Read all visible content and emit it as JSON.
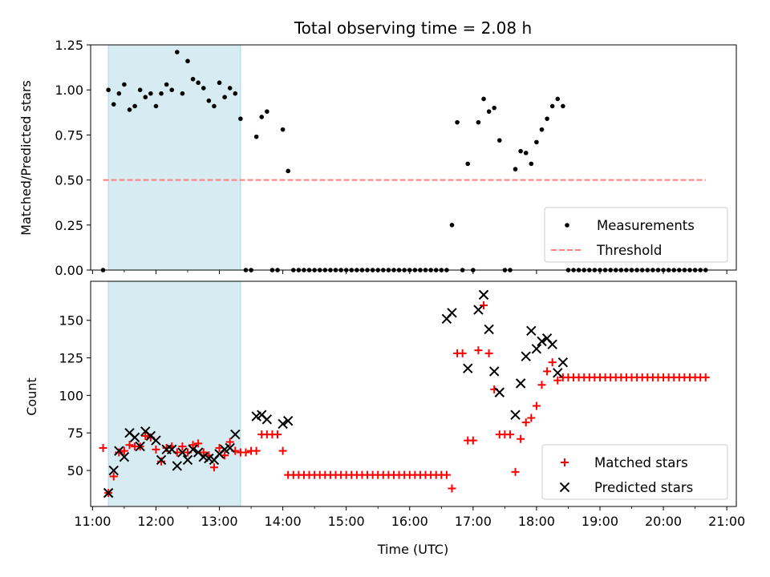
{
  "title": "Total observing time = 2.08 h",
  "colors": {
    "measurement": "#000000",
    "threshold": "#ff7f7f",
    "shade": "#add8e6",
    "matched": "#ff0000",
    "predicted": "#000000"
  },
  "chart_data": [
    {
      "type": "scatter",
      "panel": "top",
      "ylabel": "Matched/Predicted stars",
      "xlim": [
        10.97,
        21.15
      ],
      "ylim": [
        0,
        1.25
      ],
      "yticks": [
        0.0,
        0.25,
        0.5,
        0.75,
        1.0,
        1.25
      ],
      "ytick_labels": [
        "0.00",
        "0.25",
        "0.50",
        "0.75",
        "1.00",
        "1.25"
      ],
      "shaded_span": [
        "11:15",
        "13:20"
      ],
      "legend": {
        "location": "lower right",
        "entries": [
          "Measurements",
          "Threshold"
        ]
      },
      "series": [
        {
          "name": "Measurements",
          "marker": "dot",
          "x": [
            "11:10",
            "11:15",
            "11:20",
            "11:25",
            "11:30",
            "11:35",
            "11:40",
            "11:45",
            "11:50",
            "11:55",
            "12:00",
            "12:05",
            "12:10",
            "12:15",
            "12:20",
            "12:25",
            "12:30",
            "12:35",
            "12:40",
            "12:45",
            "12:50",
            "12:55",
            "13:00",
            "13:05",
            "13:10",
            "13:15",
            "13:20",
            "13:25",
            "13:30",
            "13:35",
            "13:40",
            "13:45",
            "13:50",
            "13:55",
            "14:00",
            "14:05",
            "14:10",
            "14:15",
            "14:20",
            "14:25",
            "14:30",
            "14:35",
            "14:40",
            "14:45",
            "14:50",
            "14:55",
            "15:00",
            "15:05",
            "15:10",
            "15:15",
            "15:20",
            "15:25",
            "15:30",
            "15:35",
            "15:40",
            "15:45",
            "15:50",
            "15:55",
            "16:00",
            "16:05",
            "16:10",
            "16:15",
            "16:20",
            "16:25",
            "16:30",
            "16:35",
            "16:40",
            "16:45",
            "16:50",
            "16:55",
            "17:00",
            "17:05",
            "17:10",
            "17:15",
            "17:20",
            "17:25",
            "17:30",
            "17:35",
            "17:40",
            "17:45",
            "17:50",
            "17:55",
            "18:00",
            "18:05",
            "18:10",
            "18:15",
            "18:20",
            "18:25",
            "18:30",
            "18:35",
            "18:40",
            "18:45",
            "18:50",
            "18:55",
            "19:00",
            "19:05",
            "19:10",
            "19:15",
            "19:20",
            "19:25",
            "19:30",
            "19:35",
            "19:40",
            "19:45",
            "19:50",
            "19:55",
            "20:00",
            "20:05",
            "20:10",
            "20:15",
            "20:20",
            "20:25",
            "20:30",
            "20:35",
            "20:40"
          ],
          "y": [
            0.0,
            1.0,
            0.92,
            0.98,
            1.03,
            0.89,
            0.91,
            1.0,
            0.96,
            0.98,
            0.91,
            0.98,
            1.03,
            1.0,
            1.21,
            0.98,
            1.16,
            1.06,
            1.04,
            1.01,
            0.94,
            0.91,
            1.04,
            0.96,
            1.01,
            0.98,
            0.84,
            0.0,
            0.0,
            0.74,
            0.85,
            0.88,
            0.0,
            0.0,
            0.78,
            0.55,
            0.0,
            0.0,
            0.0,
            0.0,
            0.0,
            0.0,
            0.0,
            0.0,
            0.0,
            0.0,
            0.0,
            0.0,
            0.0,
            0.0,
            0.0,
            0.0,
            0.0,
            0.0,
            0.0,
            0.0,
            0.0,
            0.0,
            0.0,
            0.0,
            0.0,
            0.0,
            0.0,
            0.0,
            0.0,
            0.0,
            0.25,
            0.82,
            0.0,
            0.59,
            0.0,
            0.82,
            0.95,
            0.88,
            0.9,
            0.72,
            0.0,
            0.0,
            0.56,
            0.66,
            0.65,
            0.59,
            0.71,
            0.78,
            0.84,
            0.91,
            0.95,
            0.91,
            0.0,
            0.0,
            0.0,
            0.0,
            0.0,
            0.0,
            0.0,
            0.0,
            0.0,
            0.0,
            0.0,
            0.0,
            0.0,
            0.0,
            0.0,
            0.0,
            0.0,
            0.0,
            0.0,
            0.0,
            0.0,
            0.0,
            0.0,
            0.0,
            0.0,
            0.0,
            0.0
          ]
        },
        {
          "name": "Threshold",
          "marker": "dashed-line",
          "x": [
            "11:10",
            "20:40"
          ],
          "y": [
            0.5,
            0.5
          ]
        }
      ]
    },
    {
      "type": "scatter",
      "panel": "bottom",
      "xlabel": "Time (UTC)",
      "ylabel": "Count",
      "xlim": [
        10.97,
        21.15
      ],
      "ylim": [
        26,
        176
      ],
      "xticks": [
        "11:00",
        "12:00",
        "13:00",
        "14:00",
        "15:00",
        "16:00",
        "17:00",
        "18:00",
        "19:00",
        "20:00",
        "21:00"
      ],
      "yticks": [
        50,
        75,
        100,
        125,
        150
      ],
      "ytick_labels": [
        "50",
        "75",
        "100",
        "125",
        "150"
      ],
      "shaded_span": [
        "11:15",
        "13:20"
      ],
      "legend": {
        "location": "lower right",
        "entries": [
          "Matched stars",
          "Predicted stars"
        ]
      },
      "series": [
        {
          "name": "Matched stars",
          "marker": "plus",
          "x": [
            "11:10",
            "11:15",
            "11:20",
            "11:25",
            "11:30",
            "11:35",
            "11:40",
            "11:45",
            "11:50",
            "11:55",
            "12:00",
            "12:05",
            "12:10",
            "12:15",
            "12:20",
            "12:25",
            "12:30",
            "12:35",
            "12:40",
            "12:45",
            "12:50",
            "12:55",
            "13:00",
            "13:05",
            "13:10",
            "13:15",
            "13:20",
            "13:25",
            "13:30",
            "13:35",
            "13:40",
            "13:45",
            "13:50",
            "13:55",
            "14:00",
            "14:05",
            "14:10",
            "14:15",
            "14:20",
            "14:25",
            "14:30",
            "14:35",
            "14:40",
            "14:45",
            "14:50",
            "14:55",
            "15:00",
            "15:05",
            "15:10",
            "15:15",
            "15:20",
            "15:25",
            "15:30",
            "15:35",
            "15:40",
            "15:45",
            "15:50",
            "15:55",
            "16:00",
            "16:05",
            "16:10",
            "16:15",
            "16:20",
            "16:25",
            "16:30",
            "16:35",
            "16:40",
            "16:45",
            "16:50",
            "16:55",
            "17:00",
            "17:05",
            "17:10",
            "17:15",
            "17:20",
            "17:25",
            "17:30",
            "17:35",
            "17:40",
            "17:45",
            "17:50",
            "17:55",
            "18:00",
            "18:05",
            "18:10",
            "18:15",
            "18:20",
            "18:25",
            "18:30",
            "18:35",
            "18:40",
            "18:45",
            "18:50",
            "18:55",
            "19:00",
            "19:05",
            "19:10",
            "19:15",
            "19:20",
            "19:25",
            "19:30",
            "19:35",
            "19:40",
            "19:45",
            "19:50",
            "19:55",
            "20:00",
            "20:05",
            "20:10",
            "20:15",
            "20:20",
            "20:25",
            "20:30",
            "20:35",
            "20:40"
          ],
          "y": [
            65,
            35,
            46,
            62,
            63,
            67,
            66,
            66,
            73,
            72,
            64,
            56,
            65,
            66,
            62,
            66,
            62,
            67,
            68,
            62,
            60,
            52,
            65,
            60,
            69,
            63,
            62,
            62,
            63,
            63,
            74,
            74,
            74,
            74,
            63,
            47,
            47,
            47,
            47,
            47,
            47,
            47,
            47,
            47,
            47,
            47,
            47,
            47,
            47,
            47,
            47,
            47,
            47,
            47,
            47,
            47,
            47,
            47,
            47,
            47,
            47,
            47,
            47,
            47,
            47,
            47,
            38,
            128,
            128,
            70,
            70,
            130,
            160,
            128,
            104,
            74,
            74,
            74,
            49,
            71,
            82,
            85,
            93,
            107,
            116,
            122,
            110,
            112,
            112,
            112,
            112,
            112,
            112,
            112,
            112,
            112,
            112,
            112,
            112,
            112,
            112,
            112,
            112,
            112,
            112,
            112,
            112,
            112,
            112,
            112,
            112,
            112,
            112,
            112,
            112
          ]
        },
        {
          "name": "Predicted stars",
          "marker": "x",
          "x": [
            "11:15",
            "11:20",
            "11:25",
            "11:30",
            "11:35",
            "11:40",
            "11:45",
            "11:50",
            "11:55",
            "12:00",
            "12:05",
            "12:10",
            "12:15",
            "12:20",
            "12:25",
            "12:30",
            "12:35",
            "12:40",
            "12:45",
            "12:50",
            "12:55",
            "13:00",
            "13:05",
            "13:10",
            "13:15",
            "13:35",
            "13:40",
            "13:45",
            "14:00",
            "14:05",
            "16:35",
            "16:40",
            "16:55",
            "17:05",
            "17:10",
            "17:15",
            "17:20",
            "17:25",
            "17:40",
            "17:45",
            "17:50",
            "17:55",
            "18:00",
            "18:05",
            "18:10",
            "18:15",
            "18:20",
            "18:25"
          ],
          "y": [
            35,
            50,
            63,
            59,
            75,
            72,
            66,
            76,
            73,
            70,
            57,
            64,
            64,
            53,
            62,
            57,
            64,
            62,
            59,
            58,
            57,
            61,
            64,
            65,
            74,
            86,
            87,
            84,
            81,
            83,
            151,
            155,
            118,
            157,
            167,
            144,
            116,
            102,
            87,
            108,
            126,
            143,
            131,
            136,
            138,
            134,
            115,
            122
          ]
        }
      ]
    }
  ]
}
